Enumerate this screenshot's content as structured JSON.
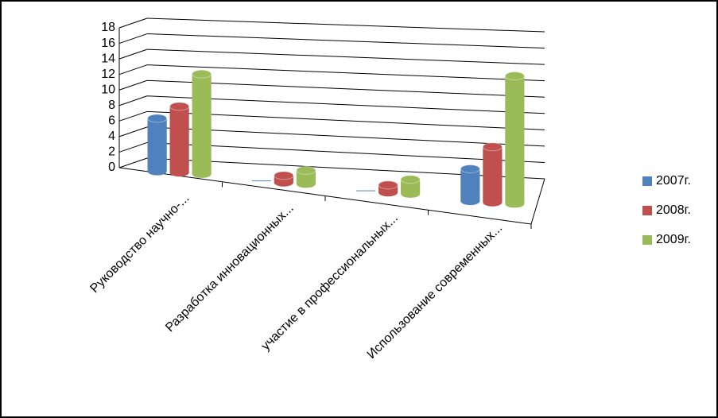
{
  "chart_data": {
    "type": "bar3d",
    "categories": [
      "Руководство  научно-...",
      "Разработка инновационных...",
      "участие в профессиональных...",
      "Использование современных..."
    ],
    "series": [
      {
        "name": "2007г.",
        "color": "#4f81bd",
        "values": [
          8,
          0,
          0,
          4
        ]
      },
      {
        "name": "2008г.",
        "color": "#c0504d",
        "values": [
          10,
          1,
          1,
          7
        ]
      },
      {
        "name": "2009г.",
        "color": "#9bbb59",
        "values": [
          15,
          2,
          2,
          16
        ]
      }
    ],
    "ylim": [
      0,
      18
    ],
    "yticks": [
      0,
      2,
      4,
      6,
      8,
      10,
      12,
      14,
      16,
      18
    ],
    "grid": true,
    "legend": "right"
  }
}
